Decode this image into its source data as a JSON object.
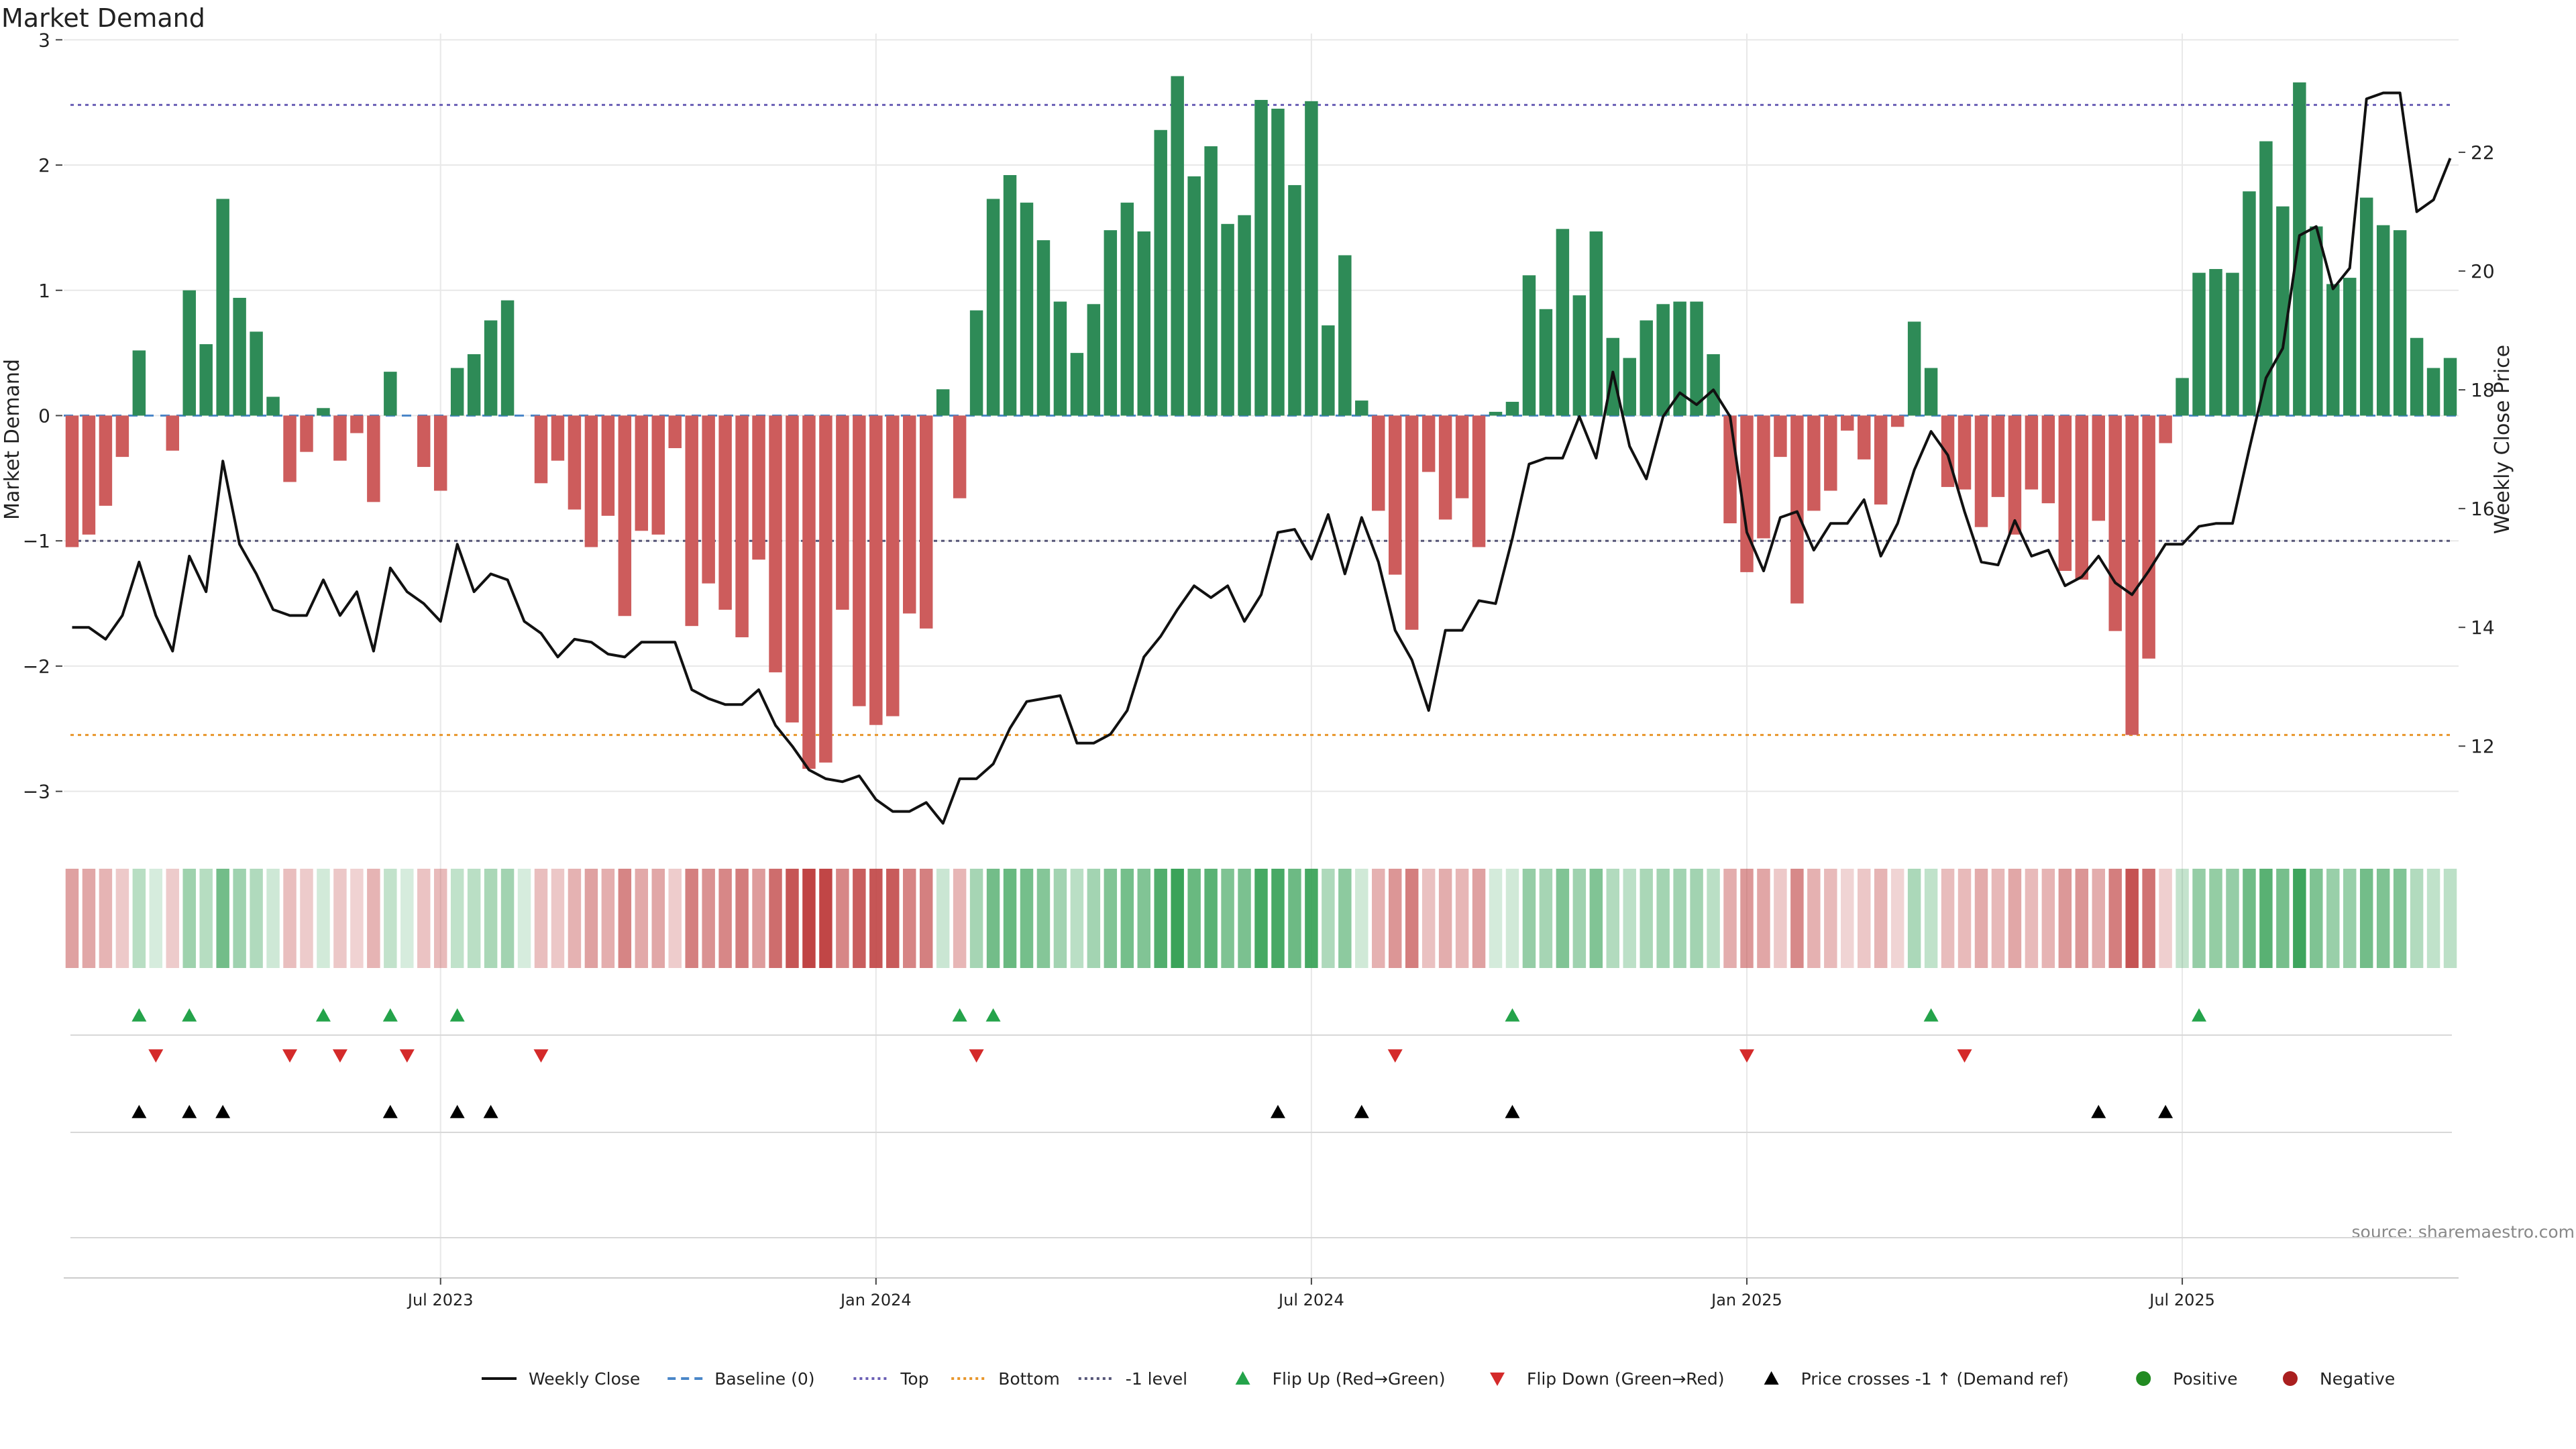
{
  "chart_data": {
    "type": "bar",
    "title": "Market Demand",
    "ylabel": "Market Demand",
    "y2label": "Weekly Close Price",
    "ylim": [
      -3.35,
      3.05
    ],
    "y2lim": [
      10.5,
      24.0
    ],
    "yticks": [
      3,
      2,
      1,
      0,
      -1,
      -2,
      -3
    ],
    "ytick_labels": [
      "3",
      "2",
      "1",
      "0",
      "−1",
      "−2",
      "−3"
    ],
    "y2ticks": [
      22,
      20,
      18,
      16,
      14,
      12
    ],
    "y2tick_labels": [
      "22",
      "20",
      "18",
      "16",
      "14",
      "12"
    ],
    "xticks": [
      {
        "label": "Jul 2023",
        "index": 22
      },
      {
        "label": "Jan 2024",
        "index": 48
      },
      {
        "label": "Jul 2024",
        "index": 74
      },
      {
        "label": "Jan 2025",
        "index": 100
      },
      {
        "label": "Jul 2025",
        "index": 126
      }
    ],
    "reference_lines": {
      "top": 2.48,
      "bottom": -2.55,
      "minus_one": -1.0,
      "baseline": 0
    },
    "demand": [
      -1.05,
      -0.95,
      -0.72,
      -0.33,
      0.52,
      0.0,
      -0.28,
      1.0,
      0.57,
      1.73,
      0.94,
      0.67,
      0.15,
      -0.53,
      -0.29,
      0.06,
      -0.36,
      -0.14,
      -0.69,
      0.35,
      0.0,
      -0.41,
      -0.6,
      0.38,
      0.49,
      0.76,
      0.92,
      0.0,
      -0.54,
      -0.36,
      -0.75,
      -1.05,
      -0.8,
      -1.6,
      -0.92,
      -0.95,
      -0.26,
      -1.68,
      -1.34,
      -1.55,
      -1.77,
      -1.15,
      -2.05,
      -2.45,
      -2.82,
      -2.77,
      -1.55,
      -2.32,
      -2.47,
      -2.4,
      -1.58,
      -1.7,
      0.21,
      -0.66,
      0.84,
      1.73,
      1.92,
      1.7,
      1.4,
      0.91,
      0.5,
      0.89,
      1.48,
      1.7,
      1.47,
      2.28,
      2.71,
      1.91,
      2.15,
      1.53,
      1.6,
      2.52,
      2.45,
      1.84,
      2.51,
      0.72,
      1.28,
      0.12,
      -0.76,
      -1.27,
      -1.71,
      -0.45,
      -0.83,
      -0.66,
      -1.05,
      0.03,
      0.11,
      1.12,
      0.85,
      1.49,
      0.96,
      1.47,
      0.62,
      0.46,
      0.76,
      0.89,
      0.91,
      0.91,
      0.49,
      -0.86,
      -1.25,
      -0.98,
      -0.33,
      -1.5,
      -0.76,
      -0.6,
      -0.12,
      -0.35,
      -0.71,
      -0.09,
      0.75,
      0.38,
      -0.57,
      -0.59,
      -0.89,
      -0.65,
      -0.95,
      -0.59,
      -0.7,
      -1.24,
      -1.31,
      -0.84,
      -1.72,
      -2.55,
      -1.94,
      -0.22,
      0.3,
      1.14,
      1.17,
      1.14,
      1.79,
      2.19,
      1.67,
      2.66,
      1.51,
      1.05,
      1.1,
      1.74,
      1.52,
      1.48,
      0.62,
      0.38,
      0.46
    ],
    "series": [
      {
        "name": "Weekly Close",
        "color": "#111111",
        "values": [
          14.0,
          14.0,
          13.8,
          14.2,
          15.1,
          14.2,
          13.6,
          15.2,
          14.6,
          16.8,
          15.4,
          14.9,
          14.3,
          14.2,
          14.2,
          14.8,
          14.2,
          14.6,
          13.6,
          15.0,
          14.6,
          14.4,
          14.1,
          15.4,
          14.6,
          14.9,
          14.8,
          14.1,
          13.9,
          13.5,
          13.8,
          13.75,
          13.55,
          13.5,
          13.75,
          13.75,
          13.75,
          12.95,
          12.8,
          12.7,
          12.7,
          12.95,
          12.35,
          12.0,
          11.6,
          11.45,
          11.4,
          11.5,
          11.1,
          10.9,
          10.9,
          11.05,
          10.7,
          11.45,
          11.45,
          11.7,
          12.3,
          12.75,
          12.8,
          12.85,
          12.05,
          12.05,
          12.2,
          12.6,
          13.5,
          13.85,
          14.3,
          14.7,
          14.5,
          14.7,
          14.1,
          14.55,
          15.6,
          15.65,
          15.15,
          15.9,
          14.9,
          15.85,
          15.1,
          13.95,
          13.45,
          12.6,
          13.95,
          13.95,
          14.45,
          14.4,
          15.5,
          16.75,
          16.85,
          16.85,
          17.55,
          16.85,
          18.3,
          17.05,
          16.5,
          17.55,
          17.95,
          17.75,
          18.0,
          17.55,
          15.6,
          14.95,
          15.85,
          15.95,
          15.3,
          15.75,
          15.75,
          16.15,
          15.2,
          15.75,
          16.65,
          17.3,
          16.9,
          15.95,
          15.1,
          15.05,
          15.8,
          15.2,
          15.3,
          14.7,
          14.85,
          15.2,
          14.75,
          14.55,
          14.95,
          15.4,
          15.4,
          15.7,
          15.75,
          15.75,
          17.0,
          18.2,
          18.7,
          20.6,
          20.75,
          19.7,
          20.05,
          22.9,
          23.0,
          23.0,
          21.0,
          21.2,
          21.9
        ]
      },
      {
        "name": "Baseline (0)",
        "color": "#4a86c8"
      },
      {
        "name": "Top",
        "color": "#6a5fb5"
      },
      {
        "name": "Bottom",
        "color": "#e8962b"
      },
      {
        "name": "-1 level",
        "color": "#555577"
      }
    ],
    "events": {
      "flip_up": [
        4,
        7,
        15,
        19,
        23,
        53,
        55,
        86,
        111,
        127
      ],
      "flip_down": [
        5,
        13,
        16,
        20,
        28,
        54,
        79,
        100,
        113
      ],
      "price_cross": [
        4,
        7,
        9,
        19,
        23,
        25,
        72,
        77,
        86,
        121,
        125
      ]
    },
    "legend": {
      "placement": "bottom",
      "items": [
        {
          "label": "Weekly Close",
          "marker": "line",
          "color": "#111111"
        },
        {
          "label": "Baseline (0)",
          "marker": "dashed",
          "color": "#4a86c8"
        },
        {
          "label": "Top",
          "marker": "dotted",
          "color": "#6a5fb5"
        },
        {
          "label": "Bottom",
          "marker": "dotted",
          "color": "#e8962b"
        },
        {
          "label": "-1 level",
          "marker": "dotted",
          "color": "#555577"
        },
        {
          "label": "Flip Up (Red→Green)",
          "marker": "triangle-up",
          "color": "#24a34a"
        },
        {
          "label": "Flip Down (Green→Red)",
          "marker": "triangle-down",
          "color": "#d42a2a"
        },
        {
          "label": "Price crosses -1 ↑ (Demand ref)",
          "marker": "triangle-up",
          "color": "#000000"
        },
        {
          "label": "Positive",
          "marker": "circle",
          "color": "#228b22"
        },
        {
          "label": "Negative",
          "marker": "circle",
          "color": "#aa1f1f"
        }
      ]
    },
    "colors": {
      "positive": "#2e8b57",
      "negative": "#cd5c5c",
      "grid": "#e8e8e8"
    },
    "source": "source: sharemaestro.com",
    "grid": true
  }
}
